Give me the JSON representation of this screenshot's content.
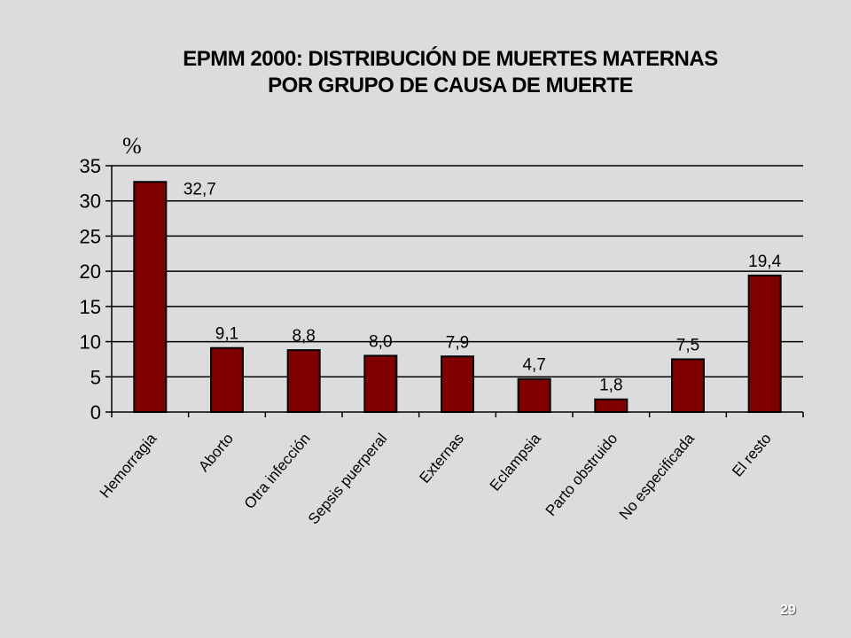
{
  "slide": {
    "title_line1": "EPMM 2000: DISTRIBUCIÓN DE MUERTES MATERNAS",
    "title_line2": "POR GRUPO DE CAUSA DE MUERTE",
    "unit": "%",
    "page_number": "29"
  },
  "colors": {
    "bar": "#800000",
    "background": "#dcdcdc"
  },
  "chart_data": {
    "type": "bar",
    "title": "EPMM 2000: DISTRIBUCIÓN DE MUERTES MATERNAS POR GRUPO DE CAUSA DE MUERTE",
    "ylabel": "%",
    "xlabel": "",
    "ylim": [
      0,
      35
    ],
    "yticks": [
      "0",
      "5",
      "10",
      "15",
      "20",
      "25",
      "30",
      "35"
    ],
    "grid": true,
    "categories": [
      "Hemorragia",
      "Aborto",
      "Otra infección",
      "Sepsis puerperal",
      "Externas",
      "Eclampsia",
      "Parto obstruido",
      "No especificada",
      "El resto"
    ],
    "values": [
      32.7,
      9.1,
      8.8,
      8.0,
      7.9,
      4.7,
      1.8,
      7.5,
      19.4
    ],
    "value_labels": [
      "32,7",
      "9,1",
      "8,8",
      "8,0",
      "7,9",
      "4,7",
      "1,8",
      "7,5",
      "19,4"
    ]
  }
}
